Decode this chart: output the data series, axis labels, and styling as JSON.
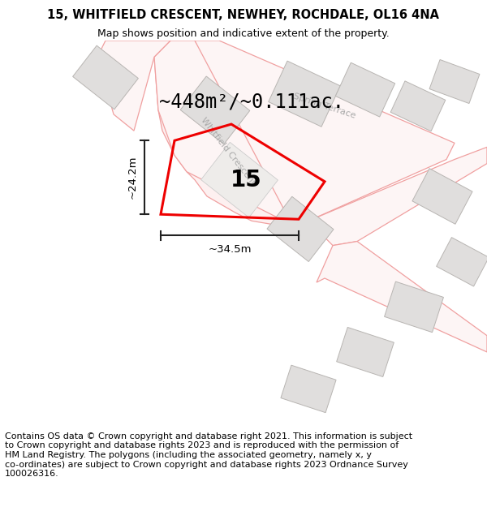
{
  "title": "15, WHITFIELD CRESCENT, NEWHEY, ROCHDALE, OL16 4NA",
  "subtitle": "Map shows position and indicative extent of the property.",
  "copyright_text": "Contains OS data © Crown copyright and database right 2021. This information is subject\nto Crown copyright and database rights 2023 and is reproduced with the permission of\nHM Land Registry. The polygons (including the associated geometry, namely x, y\nco-ordinates) are subject to Crown copyright and database rights 2023 Ordnance Survey\n100026316.",
  "area_text": "~448m²/~0.111ac.",
  "width_label": "~34.5m",
  "height_label": "~24.2m",
  "plot_number": "15",
  "bg_color": "#ffffff",
  "road_outline_color": "#f0a0a0",
  "building_color": "#e0dedd",
  "building_outline": "#b8b5b2",
  "plot_color": "#ee0000",
  "dim_line_color": "#222222",
  "title_fontsize": 10.5,
  "subtitle_fontsize": 9,
  "copyright_fontsize": 8,
  "area_fontsize": 17,
  "plot_number_fontsize": 20,
  "dim_fontsize": 9.5,
  "street_label_color": "#aaaaaa",
  "street_label_fontsize": 8
}
